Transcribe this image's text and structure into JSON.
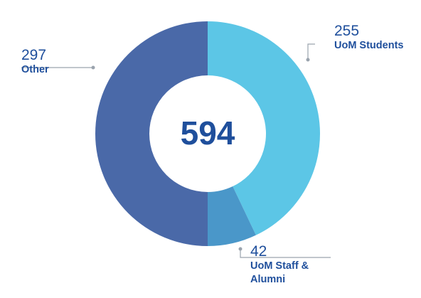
{
  "chart_data": {
    "type": "donut",
    "total": 594,
    "categories": [
      "UoM Students",
      "UoM Staff & Alumni",
      "Other"
    ],
    "values": [
      255,
      42,
      297
    ],
    "colors": [
      "#5cc6e6",
      "#4a97c9",
      "#4a69a8"
    ]
  }
}
